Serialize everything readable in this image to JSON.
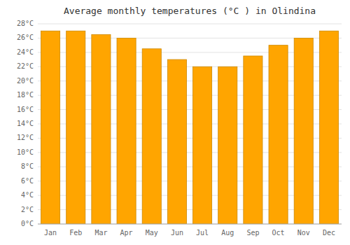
{
  "chart_data": {
    "type": "bar",
    "title": "Average monthly temperatures (°C ) in Olindina",
    "categories": [
      "Jan",
      "Feb",
      "Mar",
      "Apr",
      "May",
      "Jun",
      "Jul",
      "Aug",
      "Sep",
      "Oct",
      "Nov",
      "Dec"
    ],
    "values": [
      27.0,
      27.0,
      26.5,
      26.0,
      24.5,
      23.0,
      22.0,
      22.0,
      23.5,
      25.0,
      26.0,
      27.0
    ],
    "color": "#FFA500",
    "ylim": [
      0,
      28
    ],
    "yticks": [
      {
        "value": 0,
        "label": "0°C"
      },
      {
        "value": 2,
        "label": "2°C"
      },
      {
        "value": 4,
        "label": "4°C"
      },
      {
        "value": 6,
        "label": "6°C"
      },
      {
        "value": 8,
        "label": "8°C"
      },
      {
        "value": 10,
        "label": "10°C"
      },
      {
        "value": 12,
        "label": "12°C"
      },
      {
        "value": 14,
        "label": "14°C"
      },
      {
        "value": 16,
        "label": "16°C"
      },
      {
        "value": 18,
        "label": "18°C"
      },
      {
        "value": 20,
        "label": "20°C"
      },
      {
        "value": 22,
        "label": "22°C"
      },
      {
        "value": 24,
        "label": "24°C"
      },
      {
        "value": 26,
        "label": "26°C"
      },
      {
        "value": 28,
        "label": "28°C"
      }
    ],
    "grid": true
  }
}
